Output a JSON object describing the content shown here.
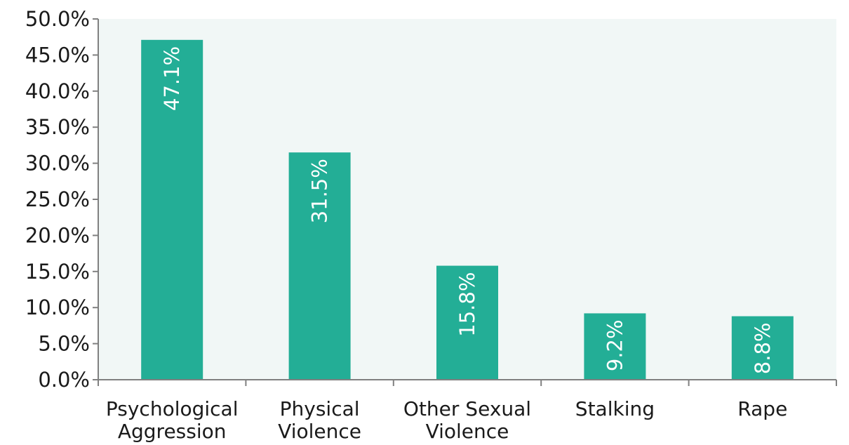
{
  "chart_data": {
    "type": "bar",
    "categories": [
      [
        "Psychological",
        "Aggression"
      ],
      [
        "Physical",
        "Violence"
      ],
      [
        "Other Sexual",
        "Violence"
      ],
      [
        "Stalking"
      ],
      [
        "Rape"
      ]
    ],
    "values": [
      47.1,
      31.5,
      15.8,
      9.2,
      8.8
    ],
    "data_labels": [
      "47.1%",
      "31.5%",
      "15.8%",
      "9.2%",
      "8.8%"
    ],
    "ylim": [
      0,
      50
    ],
    "y_ticks": [
      0,
      5,
      10,
      15,
      20,
      25,
      30,
      35,
      40,
      45,
      50
    ],
    "y_tick_labels": [
      "0.0%",
      "5.0%",
      "10.0%",
      "15.0%",
      "20.0%",
      "25.0%",
      "30.0%",
      "35.0%",
      "40.0%",
      "45.0%",
      "50.0%"
    ],
    "title": "",
    "xlabel": "",
    "ylabel": "",
    "grid": false,
    "legend": "none",
    "colors": {
      "bar": "#23ae96",
      "plot_background": "#f1f7f6",
      "axis": "#808080"
    }
  }
}
